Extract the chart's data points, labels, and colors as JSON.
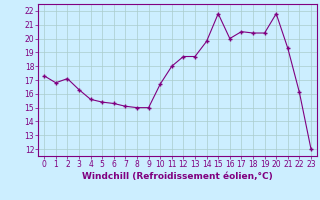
{
  "x": [
    0,
    1,
    2,
    3,
    4,
    5,
    6,
    7,
    8,
    9,
    10,
    11,
    12,
    13,
    14,
    15,
    16,
    17,
    18,
    19,
    20,
    21,
    22,
    23
  ],
  "y": [
    17.3,
    16.8,
    17.1,
    16.3,
    15.6,
    15.4,
    15.3,
    15.1,
    15.0,
    15.0,
    16.7,
    18.0,
    18.7,
    18.7,
    19.8,
    21.8,
    20.0,
    20.5,
    20.4,
    20.4,
    21.8,
    19.3,
    16.1,
    12.0
  ],
  "line_color": "#800080",
  "marker": "+",
  "marker_size": 3,
  "background_color": "#cceeff",
  "grid_color": "#aacccc",
  "xlabel": "Windchill (Refroidissement éolien,°C)",
  "xlabel_color": "#800080",
  "ylabel_ticks": [
    12,
    13,
    14,
    15,
    16,
    17,
    18,
    19,
    20,
    21,
    22
  ],
  "xlim": [
    -0.5,
    23.5
  ],
  "ylim": [
    11.5,
    22.5
  ],
  "tick_color": "#800080",
  "axis_color": "#800080",
  "label_fontsize": 6.5,
  "tick_fontsize": 5.5
}
